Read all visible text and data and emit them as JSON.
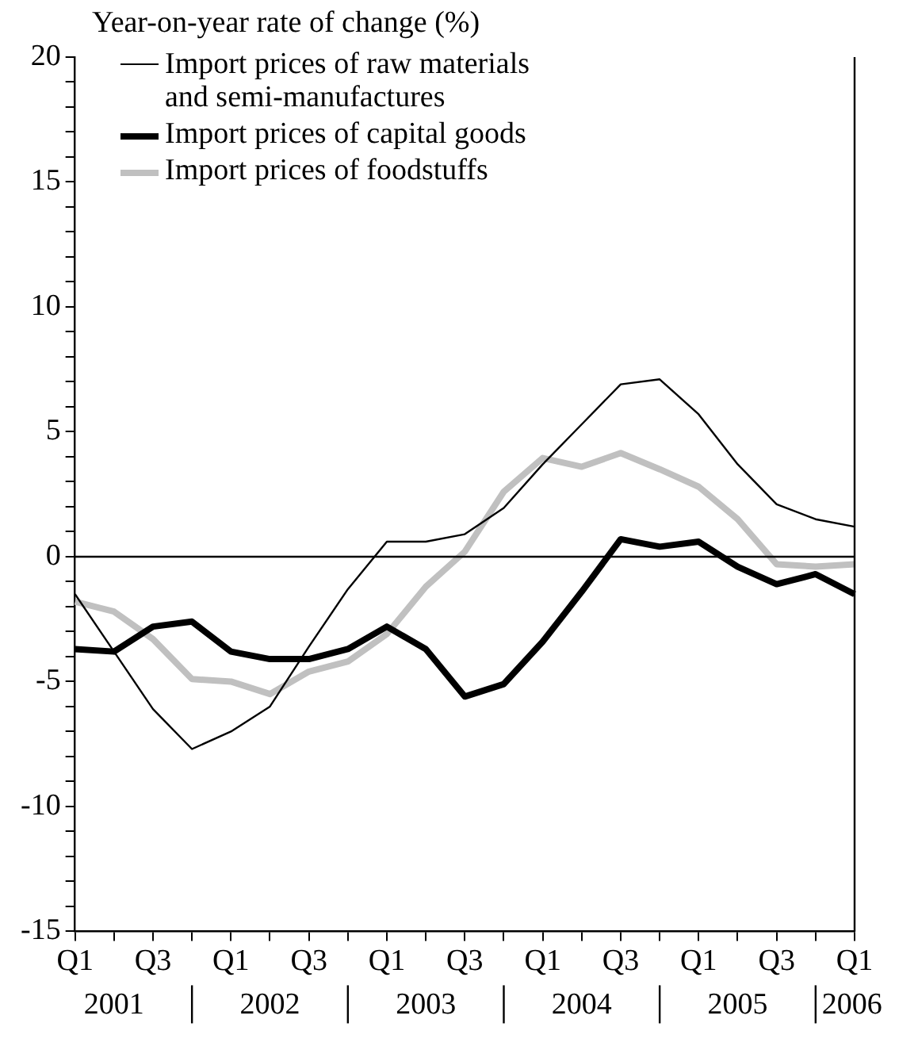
{
  "chart_data": {
    "type": "line",
    "ylabel": "Year-on-year rate of change (%)",
    "categories": [
      "Q1",
      null,
      "Q3",
      null,
      "Q1",
      null,
      "Q3",
      null,
      "Q1",
      null,
      "Q3",
      null,
      "Q1",
      null,
      "Q3",
      null,
      "Q1",
      null,
      "Q3",
      null,
      "Q1"
    ],
    "annotations": [
      "2001",
      "2002",
      "2003",
      "2004",
      "2005",
      "2006"
    ],
    "series": [
      {
        "name": "Import prices of raw materials\nand semi-manufactures",
        "color": "#000000",
        "values": [
          -1.5,
          -3.8,
          -6.1,
          -7.7,
          -7.0,
          -6.0,
          -3.6,
          -1.3,
          0.6,
          0.6,
          0.9,
          1.95,
          3.7,
          5.3,
          6.9,
          7.1,
          5.7,
          3.7,
          2.1,
          1.5,
          1.2
        ]
      },
      {
        "name": "Import prices of capital goods",
        "color": "#000000",
        "values": [
          -3.7,
          -3.8,
          -2.8,
          -2.6,
          -3.8,
          -4.1,
          -4.1,
          -3.7,
          -2.8,
          -3.7,
          -5.6,
          -5.1,
          -3.4,
          -1.4,
          0.7,
          0.4,
          0.6,
          -0.4,
          -1.1,
          -0.7,
          -1.5
        ]
      },
      {
        "name": "Import prices of foodstuffs",
        "color": "#c0c0c0",
        "values": [
          -1.8,
          -2.2,
          -3.3,
          -4.9,
          -5.0,
          -5.5,
          -4.6,
          -4.2,
          -3.1,
          -1.2,
          0.2,
          2.6,
          3.95,
          3.6,
          4.15,
          3.5,
          2.8,
          1.5,
          -0.3,
          -0.4,
          -0.3
        ]
      }
    ],
    "ylim": [
      -15,
      20
    ],
    "yticks": [
      -15,
      {
        "value": -14,
        "label": null
      },
      {
        "value": -13,
        "label": null
      },
      {
        "value": -12,
        "label": null
      },
      {
        "value": -11,
        "label": null
      },
      -10,
      {
        "value": -9,
        "label": null
      },
      {
        "value": -8,
        "label": null
      },
      {
        "value": -7,
        "label": null
      },
      {
        "value": -6,
        "label": null
      },
      -5,
      {
        "value": -4,
        "label": null
      },
      {
        "value": -3,
        "label": null
      },
      {
        "value": -2,
        "label": null
      },
      {
        "value": -1,
        "label": null
      },
      0,
      {
        "value": 1,
        "label": null
      },
      {
        "value": 2,
        "label": null
      },
      {
        "value": 3,
        "label": null
      },
      {
        "value": 4,
        "label": null
      },
      5,
      {
        "value": 6,
        "label": null
      },
      {
        "value": 7,
        "label": null
      },
      {
        "value": 8,
        "label": null
      },
      {
        "value": 9,
        "label": null
      },
      10,
      {
        "value": 11,
        "label": null
      },
      {
        "value": 12,
        "label": null
      },
      {
        "value": 13,
        "label": null
      },
      {
        "value": 14,
        "label": null
      },
      15,
      {
        "value": 16,
        "label": null
      },
      {
        "value": 17,
        "label": null
      },
      {
        "value": 18,
        "label": null
      },
      {
        "value": 19,
        "label": null
      },
      20
    ],
    "ref_lines": [
      {
        "axis": "y",
        "value": 0,
        "color": "#000000"
      }
    ],
    "grid": false,
    "legend": "top left",
    "marker": "none",
    "line_style": "solid"
  }
}
